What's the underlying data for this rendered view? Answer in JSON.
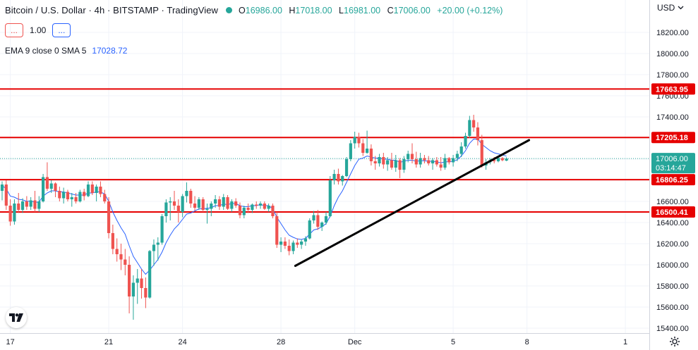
{
  "header": {
    "symbol_title": "Bitcoin / U.S. Dollar · 4h · BITSTAMP · TradingView",
    "ohlc": [
      {
        "key": "O",
        "value": "16986.00"
      },
      {
        "key": "H",
        "value": "17018.00"
      },
      {
        "key": "L",
        "value": "16981.00"
      },
      {
        "key": "C",
        "value": "17006.00"
      },
      {
        "key": "",
        "value": "+20.00 (+0.12%)"
      }
    ],
    "sell_label": "...",
    "buy_label": "...",
    "quantity": "1.00",
    "indicator_label": "EMA 9 close 0 SMA 5",
    "indicator_value": "17028.72",
    "currency": "USD"
  },
  "chart_data": {
    "type": "candlestick",
    "interval": "4h",
    "y_axis_ticks": [
      15400,
      15600,
      15800,
      16000,
      16200,
      16400,
      16600,
      16800,
      17000,
      17200,
      17400,
      17600,
      17800,
      18000,
      18200
    ],
    "y_axis_tick_labels": [
      "15400.00",
      "15600.00",
      "15800.00",
      "16000.00",
      "16200.00",
      "16400.00",
      "16600.00",
      "16800.00",
      "17000.00",
      "17200.00",
      "17400.00",
      "17600.00",
      "17800.00",
      "18000.00",
      "18200.00"
    ],
    "ylim": [
      15370,
      18380
    ],
    "x_axis_labels": [
      {
        "label": "17",
        "idx": 2
      },
      {
        "label": "21",
        "idx": 26
      },
      {
        "label": "24",
        "idx": 44
      },
      {
        "label": "28",
        "idx": 68
      },
      {
        "label": "Dec",
        "idx": 86
      },
      {
        "label": "5",
        "idx": 110
      },
      {
        "label": "8",
        "idx": 128
      },
      {
        "label": "1",
        "idx": 152
      }
    ],
    "horizontal_levels": [
      {
        "value": 17663.95,
        "label": "17663.95",
        "color": "#e60000"
      },
      {
        "value": 17205.18,
        "label": "17205.18",
        "color": "#e60000"
      },
      {
        "value": 16806.25,
        "label": "16806.25",
        "color": "#e60000"
      },
      {
        "value": 16500.41,
        "label": "16500.41",
        "color": "#e60000"
      }
    ],
    "current_price": {
      "value": 17006.0,
      "label": "17006.00",
      "countdown": "03:14:47",
      "color": "#26a69a"
    },
    "trendline": {
      "from": {
        "idx": 71.5,
        "value": 15990
      },
      "to": {
        "idx": 128.5,
        "value": 17180
      },
      "color": "#000000"
    },
    "colors": {
      "up": "#26a69a",
      "down": "#ef5350",
      "ema": "#2962ff"
    },
    "candles": [
      [
        16700,
        16790,
        16610,
        16760
      ],
      [
        16760,
        16800,
        16520,
        16560
      ],
      [
        16560,
        16620,
        16370,
        16410
      ],
      [
        16410,
        16620,
        16380,
        16580
      ],
      [
        16580,
        16680,
        16490,
        16520
      ],
      [
        16520,
        16630,
        16490,
        16600
      ],
      [
        16600,
        16650,
        16520,
        16550
      ],
      [
        16550,
        16640,
        16520,
        16610
      ],
      [
        16610,
        16700,
        16500,
        16530
      ],
      [
        16530,
        16650,
        16500,
        16600
      ],
      [
        16600,
        16860,
        16590,
        16830
      ],
      [
        16830,
        16970,
        16700,
        16720
      ],
      [
        16720,
        16800,
        16680,
        16770
      ],
      [
        16770,
        16780,
        16640,
        16700
      ],
      [
        16700,
        16740,
        16600,
        16630
      ],
      [
        16630,
        16730,
        16580,
        16690
      ],
      [
        16690,
        16710,
        16600,
        16620
      ],
      [
        16620,
        16680,
        16550,
        16640
      ],
      [
        16640,
        16680,
        16580,
        16600
      ],
      [
        16600,
        16710,
        16590,
        16690
      ],
      [
        16690,
        16720,
        16610,
        16650
      ],
      [
        16650,
        16790,
        16640,
        16760
      ],
      [
        16760,
        16790,
        16660,
        16680
      ],
      [
        16680,
        16760,
        16600,
        16740
      ],
      [
        16740,
        16790,
        16640,
        16670
      ],
      [
        16670,
        16710,
        16580,
        16600
      ],
      [
        16600,
        16640,
        16250,
        16300
      ],
      [
        16300,
        16380,
        16100,
        16150
      ],
      [
        16150,
        16250,
        16030,
        16100
      ],
      [
        16100,
        16200,
        15950,
        16050
      ],
      [
        16050,
        16150,
        15900,
        16000
      ],
      [
        16000,
        16080,
        15540,
        15700
      ],
      [
        15700,
        15900,
        15480,
        15830
      ],
      [
        15830,
        15960,
        15630,
        15870
      ],
      [
        15870,
        15960,
        15680,
        15780
      ],
      [
        15780,
        15880,
        15590,
        15690
      ],
      [
        15690,
        16140,
        15680,
        16130
      ],
      [
        16130,
        16240,
        15990,
        16190
      ],
      [
        16190,
        16260,
        16040,
        16210
      ],
      [
        16210,
        16480,
        16190,
        16460
      ],
      [
        16460,
        16620,
        16400,
        16590
      ],
      [
        16590,
        16640,
        16420,
        16600
      ],
      [
        16600,
        16700,
        16520,
        16560
      ],
      [
        16560,
        16620,
        16400,
        16500
      ],
      [
        16500,
        16670,
        16450,
        16650
      ],
      [
        16650,
        16780,
        16590,
        16700
      ],
      [
        16700,
        16720,
        16540,
        16580
      ],
      [
        16580,
        16650,
        16510,
        16540
      ],
      [
        16540,
        16640,
        16520,
        16620
      ],
      [
        16620,
        16640,
        16500,
        16520
      ],
      [
        16520,
        16580,
        16390,
        16530
      ],
      [
        16530,
        16600,
        16460,
        16580
      ],
      [
        16580,
        16660,
        16540,
        16620
      ],
      [
        16620,
        16650,
        16520,
        16550
      ],
      [
        16550,
        16670,
        16520,
        16640
      ],
      [
        16640,
        16660,
        16520,
        16530
      ],
      [
        16530,
        16620,
        16500,
        16600
      ],
      [
        16600,
        16630,
        16540,
        16560
      ],
      [
        16560,
        16590,
        16440,
        16470
      ],
      [
        16470,
        16560,
        16440,
        16540
      ],
      [
        16540,
        16580,
        16490,
        16520
      ],
      [
        16520,
        16580,
        16490,
        16570
      ],
      [
        16570,
        16600,
        16530,
        16560
      ],
      [
        16560,
        16600,
        16530,
        16580
      ],
      [
        16580,
        16600,
        16520,
        16530
      ],
      [
        16530,
        16580,
        16500,
        16560
      ],
      [
        16560,
        16580,
        16440,
        16460
      ],
      [
        16460,
        16500,
        16160,
        16190
      ],
      [
        16190,
        16260,
        16120,
        16220
      ],
      [
        16220,
        16260,
        16150,
        16180
      ],
      [
        16180,
        16240,
        16090,
        16130
      ],
      [
        16130,
        16230,
        16100,
        16210
      ],
      [
        16210,
        16250,
        16160,
        16190
      ],
      [
        16190,
        16240,
        16150,
        16220
      ],
      [
        16220,
        16270,
        16180,
        16250
      ],
      [
        16250,
        16440,
        16240,
        16420
      ],
      [
        16420,
        16510,
        16390,
        16470
      ],
      [
        16470,
        16520,
        16330,
        16360
      ],
      [
        16360,
        16410,
        16320,
        16400
      ],
      [
        16400,
        16500,
        16380,
        16460
      ],
      [
        16460,
        16840,
        16450,
        16800
      ],
      [
        16800,
        16900,
        16760,
        16860
      ],
      [
        16860,
        16910,
        16760,
        16790
      ],
      [
        16790,
        16850,
        16750,
        16840
      ],
      [
        16840,
        17020,
        16830,
        17000
      ],
      [
        17000,
        17180,
        16980,
        17150
      ],
      [
        17150,
        17260,
        17100,
        17210
      ],
      [
        17210,
        17250,
        17110,
        17150
      ],
      [
        17150,
        17190,
        17030,
        17060
      ],
      [
        17060,
        17270,
        17050,
        17100
      ],
      [
        17100,
        17140,
        16940,
        16980
      ],
      [
        16980,
        17030,
        16900,
        16960
      ],
      [
        16960,
        17050,
        16930,
        17020
      ],
      [
        17020,
        17060,
        16910,
        16950
      ],
      [
        16950,
        17020,
        16890,
        16990
      ],
      [
        16990,
        17060,
        16900,
        16920
      ],
      [
        16920,
        17040,
        16880,
        16990
      ],
      [
        16990,
        17010,
        16820,
        16900
      ],
      [
        16900,
        17030,
        16870,
        17000
      ],
      [
        17000,
        17080,
        16970,
        17050
      ],
      [
        17050,
        17150,
        16960,
        17000
      ],
      [
        17000,
        17070,
        16920,
        16950
      ],
      [
        16950,
        17060,
        16920,
        17010
      ],
      [
        17010,
        17040,
        16960,
        16990
      ],
      [
        16990,
        17030,
        16940,
        16960
      ],
      [
        16960,
        17010,
        16900,
        16990
      ],
      [
        16990,
        17020,
        16930,
        16950
      ],
      [
        16950,
        17020,
        16890,
        16920
      ],
      [
        16920,
        17050,
        16900,
        17010
      ],
      [
        17010,
        17020,
        16950,
        16970
      ],
      [
        16970,
        17040,
        16930,
        17010
      ],
      [
        17010,
        17080,
        16980,
        17050
      ],
      [
        17050,
        17160,
        17020,
        17120
      ],
      [
        17120,
        17250,
        17100,
        17220
      ],
      [
        17220,
        17410,
        17200,
        17370
      ],
      [
        17370,
        17420,
        17260,
        17300
      ],
      [
        17300,
        17350,
        17130,
        17180
      ],
      [
        17180,
        17230,
        16920,
        16940
      ],
      [
        16940,
        17000,
        16900,
        16970
      ],
      [
        16970,
        17010,
        16950,
        16990
      ],
      [
        16990,
        17020,
        16960,
        16980
      ],
      [
        16980,
        17030,
        16970,
        17010
      ],
      [
        17010,
        17020,
        16980,
        16990
      ],
      [
        16986,
        17018,
        16981,
        17006
      ]
    ],
    "ema_values": [
      16750,
      16720,
      16650,
      16640,
      16620,
      16615,
      16600,
      16605,
      16590,
      16595,
      16650,
      16680,
      16700,
      16700,
      16690,
      16690,
      16680,
      16670,
      16660,
      16660,
      16660,
      16680,
      16680,
      16690,
      16690,
      16670,
      16600,
      16500,
      16420,
      16350,
      16290,
      16180,
      16080,
      16020,
      15960,
      15910,
      15950,
      16000,
      16050,
      16120,
      16210,
      16280,
      16340,
      16380,
      16430,
      16480,
      16490,
      16510,
      16530,
      16530,
      16535,
      16540,
      16560,
      16560,
      16575,
      16570,
      16580,
      16580,
      16560,
      16550,
      16550,
      16560,
      16560,
      16570,
      16560,
      16560,
      16530,
      16450,
      16390,
      16330,
      16280,
      16260,
      16245,
      16240,
      16250,
      16290,
      16330,
      16340,
      16360,
      16390,
      16460,
      16560,
      16640,
      16700,
      16780,
      16860,
      16940,
      17000,
      17010,
      17030,
      17020,
      17010,
      17010,
      17000,
      17000,
      16990,
      16990,
      16970,
      16980,
      16990,
      16990,
      16980,
      16985,
      16985,
      16980,
      16980,
      16975,
      16965,
      16975,
      16975,
      16980,
      16995,
      17030,
      17080,
      17150,
      17190,
      17190,
      17140,
      17110,
      17080,
      17060,
      17050,
      17040,
      17029
    ]
  }
}
